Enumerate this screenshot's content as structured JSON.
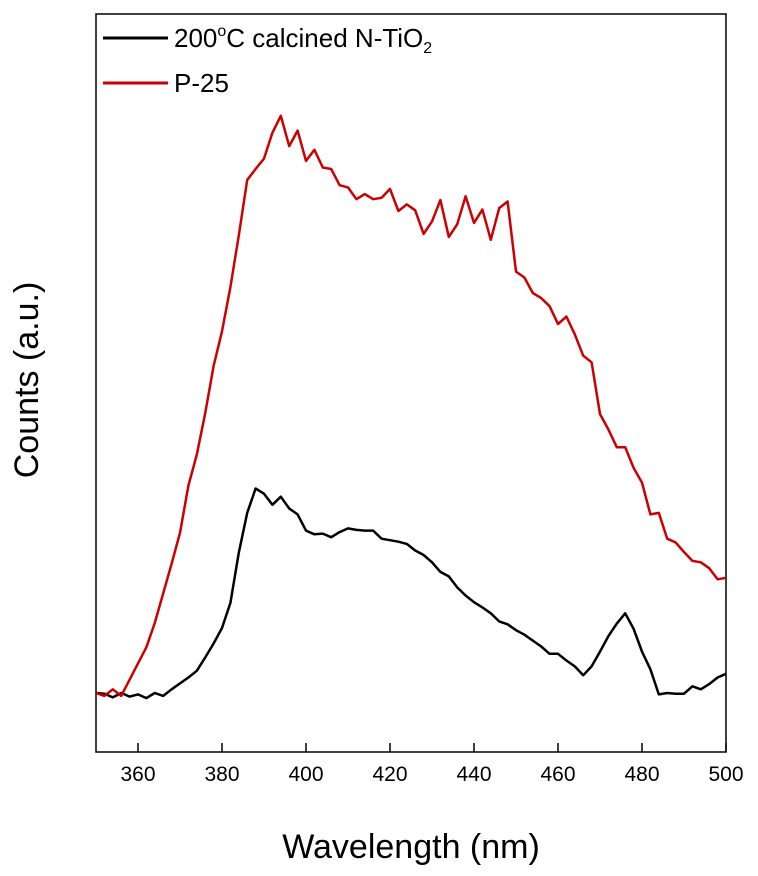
{
  "chart_data": {
    "type": "line",
    "xlabel": "Wavelength (nm)",
    "ylabel": "Counts (a.u.)",
    "xlim": [
      350,
      500
    ],
    "ylim": [
      0,
      100
    ],
    "xticks": [
      360,
      380,
      400,
      420,
      440,
      460,
      480,
      500
    ],
    "legend": {
      "placement": "top-left",
      "entries": [
        {
          "label_main": "200",
          "label_sup": "o",
          "label_mid": "C calcined N-TiO",
          "label_sub": "2"
        },
        {
          "label_main": "P-25"
        }
      ]
    },
    "series": [
      {
        "name": "200°C calcined N-TiO2",
        "color": "#000000",
        "x": [
          350,
          352,
          354,
          356,
          358,
          360,
          362,
          364,
          366,
          368,
          370,
          372,
          374,
          376,
          378,
          380,
          382,
          384,
          386,
          388,
          390,
          392,
          394,
          396,
          398,
          400,
          402,
          404,
          406,
          408,
          410,
          412,
          414,
          416,
          418,
          420,
          422,
          424,
          426,
          428,
          430,
          432,
          434,
          436,
          438,
          440,
          442,
          444,
          446,
          448,
          450,
          452,
          454,
          456,
          458,
          460,
          462,
          464,
          466,
          468,
          470,
          472,
          474,
          476,
          478,
          480,
          482,
          484,
          486,
          488,
          490,
          492,
          494,
          496,
          498,
          500
        ],
        "y": [
          8.0,
          7.9,
          7.4,
          8.0,
          7.5,
          7.8,
          7.3,
          8.0,
          7.6,
          8.5,
          9.3,
          10.1,
          11.0,
          12.8,
          14.7,
          16.8,
          20.2,
          27.0,
          32.4,
          35.7,
          35.0,
          33.5,
          34.6,
          33.0,
          32.2,
          30.0,
          29.5,
          29.6,
          29.1,
          29.8,
          30.3,
          30.1,
          30.0,
          30.0,
          28.9,
          28.7,
          28.5,
          28.2,
          27.3,
          26.7,
          25.7,
          24.4,
          23.8,
          22.3,
          21.2,
          20.3,
          19.6,
          18.8,
          17.7,
          17.3,
          16.5,
          15.9,
          15.1,
          14.3,
          13.3,
          13.3,
          12.4,
          11.6,
          10.4,
          11.6,
          13.6,
          15.7,
          17.4,
          18.8,
          16.7,
          13.6,
          11.2,
          7.8,
          8.0,
          7.9,
          7.9,
          8.9,
          8.5,
          9.2,
          10.1,
          10.6
        ]
      },
      {
        "name": "P-25",
        "color": "#cc0000",
        "x": [
          350,
          352,
          354,
          356,
          358,
          360,
          362,
          364,
          366,
          368,
          370,
          372,
          374,
          376,
          378,
          380,
          382,
          384,
          386,
          388,
          390,
          392,
          394,
          396,
          398,
          400,
          402,
          404,
          406,
          408,
          410,
          412,
          414,
          416,
          418,
          420,
          422,
          424,
          426,
          428,
          430,
          432,
          434,
          436,
          438,
          440,
          442,
          444,
          446,
          448,
          450,
          452,
          454,
          456,
          458,
          460,
          462,
          464,
          466,
          468,
          470,
          472,
          474,
          476,
          478,
          480,
          482,
          484,
          486,
          488,
          490,
          492,
          494,
          496,
          498,
          500
        ],
        "y": [
          8.0,
          7.6,
          8.5,
          7.6,
          9.8,
          12.0,
          14.2,
          17.5,
          21.5,
          25.5,
          29.7,
          36.1,
          40.3,
          45.9,
          52.3,
          57.0,
          63.0,
          70.0,
          77.5,
          79.0,
          80.4,
          83.9,
          86.2,
          82.1,
          84.2,
          80.1,
          81.6,
          79.2,
          79.0,
          76.8,
          76.5,
          74.9,
          75.6,
          74.9,
          75.1,
          76.3,
          73.3,
          74.2,
          73.4,
          70.2,
          71.9,
          74.8,
          69.8,
          71.5,
          75.3,
          71.7,
          73.5,
          69.4,
          73.7,
          74.6,
          65.1,
          64.3,
          62.2,
          61.5,
          60.4,
          58.0,
          59.0,
          56.6,
          53.7,
          52.8,
          45.8,
          43.7,
          41.3,
          41.3,
          38.5,
          36.5,
          32.2,
          32.4,
          28.9,
          28.4,
          27.1,
          25.9,
          25.7,
          24.9,
          23.4,
          23.6
        ]
      }
    ]
  }
}
